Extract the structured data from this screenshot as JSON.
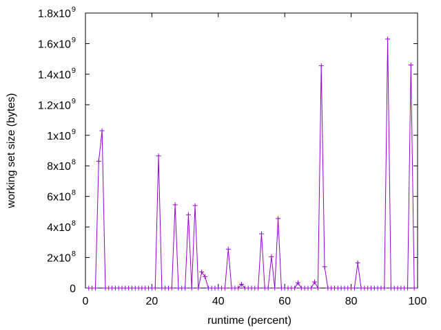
{
  "chart_data": {
    "type": "line",
    "title": "",
    "xlabel": "runtime (percent)",
    "ylabel": "working set size (bytes)",
    "xlim": [
      0,
      100
    ],
    "ylim": [
      0,
      1800000000
    ],
    "grid": false,
    "legend": "none",
    "colors": {
      "series": "#9400d3",
      "axis": "#000000"
    },
    "x_ticks": [
      {
        "value": 0,
        "label": "0"
      },
      {
        "value": 20,
        "label": "20"
      },
      {
        "value": 40,
        "label": "40"
      },
      {
        "value": 60,
        "label": "60"
      },
      {
        "value": 80,
        "label": "80"
      },
      {
        "value": 100,
        "label": "100"
      }
    ],
    "y_ticks": [
      {
        "value": 0,
        "base": "0",
        "exp": ""
      },
      {
        "value": 200000000,
        "base": "2x10",
        "exp": "8"
      },
      {
        "value": 400000000,
        "base": "4x10",
        "exp": "8"
      },
      {
        "value": 600000000,
        "base": "6x10",
        "exp": "8"
      },
      {
        "value": 800000000,
        "base": "8x10",
        "exp": "8"
      },
      {
        "value": 1000000000,
        "base": "1x10",
        "exp": "9"
      },
      {
        "value": 1200000000,
        "base": "1.2x10",
        "exp": "9"
      },
      {
        "value": 1400000000,
        "base": "1.4x10",
        "exp": "9"
      },
      {
        "value": 1600000000,
        "base": "1.6x10",
        "exp": "9"
      },
      {
        "value": 1800000000,
        "base": "1.8x10",
        "exp": "9"
      }
    ],
    "series": [
      {
        "marker": "+",
        "x": [
          1,
          2,
          3,
          4,
          5,
          6,
          7,
          8,
          9,
          10,
          11,
          12,
          13,
          14,
          15,
          16,
          17,
          18,
          19,
          20,
          21,
          22,
          23,
          24,
          25,
          26,
          27,
          28,
          29,
          30,
          31,
          32,
          33,
          34,
          35,
          36,
          37,
          38,
          39,
          40,
          41,
          42,
          43,
          44,
          45,
          46,
          47,
          48,
          49,
          50,
          51,
          52,
          53,
          54,
          55,
          56,
          57,
          58,
          59,
          60,
          61,
          62,
          63,
          64,
          65,
          66,
          67,
          68,
          69,
          70,
          71,
          72,
          73,
          74,
          75,
          76,
          77,
          78,
          79,
          80,
          81,
          82,
          83,
          84,
          85,
          86,
          87,
          88,
          89,
          90,
          91,
          92,
          93,
          94,
          95,
          96,
          97,
          98,
          99
        ],
        "y": [
          0,
          0,
          0,
          830000000,
          1030000000,
          0,
          0,
          0,
          0,
          0,
          0,
          0,
          0,
          0,
          0,
          0,
          0,
          0,
          0,
          0,
          0,
          865000000,
          0,
          0,
          0,
          0,
          545000000,
          0,
          0,
          0,
          480000000,
          0,
          540000000,
          0,
          105000000,
          75000000,
          0,
          0,
          0,
          0,
          0,
          0,
          255000000,
          0,
          0,
          0,
          25000000,
          0,
          0,
          0,
          0,
          0,
          355000000,
          0,
          0,
          205000000,
          0,
          455000000,
          0,
          0,
          0,
          0,
          0,
          35000000,
          0,
          0,
          0,
          0,
          40000000,
          0,
          1455000000,
          140000000,
          0,
          0,
          0,
          0,
          0,
          0,
          0,
          0,
          0,
          165000000,
          0,
          0,
          0,
          0,
          0,
          0,
          0,
          0,
          1630000000,
          0,
          0,
          0,
          0,
          0,
          0,
          1460000000,
          0
        ]
      }
    ]
  }
}
